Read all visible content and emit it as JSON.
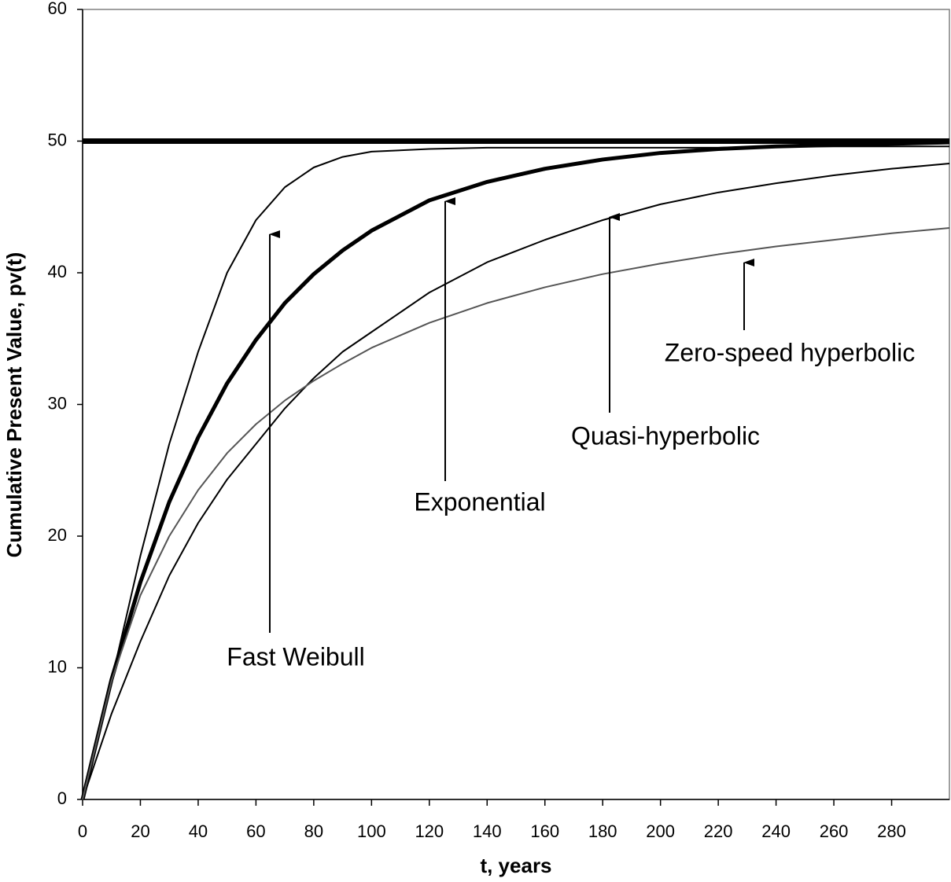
{
  "chart_data": {
    "type": "line",
    "x": [
      0,
      10,
      20,
      30,
      40,
      50,
      60,
      70,
      80,
      90,
      100,
      120,
      140,
      160,
      180,
      200,
      220,
      240,
      260,
      280,
      300
    ],
    "series": [
      {
        "color": "#000000",
        "values": [
          50,
          50,
          50,
          50,
          50,
          50,
          50,
          50,
          50,
          50,
          50,
          50,
          50,
          50,
          50,
          50,
          50,
          50,
          50,
          50,
          50
        ]
      },
      {
        "name": "Fast Weibull",
        "color": "#000000",
        "values": [
          0,
          9,
          18.5,
          27,
          34,
          40,
          44,
          46.5,
          48,
          48.8,
          49.2,
          49.4,
          49.5,
          49.5,
          49.5,
          49.5,
          49.5,
          49.6,
          49.6,
          49.6,
          49.6
        ]
      },
      {
        "name": "Exponential",
        "color": "#000000",
        "values": [
          0,
          9.1,
          16.5,
          22.6,
          27.5,
          31.6,
          34.9,
          37.7,
          39.9,
          41.7,
          43.2,
          45.5,
          46.9,
          47.9,
          48.6,
          49.1,
          49.4,
          49.6,
          49.7,
          49.8,
          49.9
        ]
      },
      {
        "name": "Quasi-hyperbolic",
        "color": "#000000",
        "values": [
          0,
          6.5,
          12,
          17,
          21,
          24.3,
          27,
          29.7,
          32,
          34,
          35.5,
          38.5,
          40.8,
          42.5,
          44,
          45.2,
          46.1,
          46.8,
          47.4,
          47.9,
          48.3
        ]
      },
      {
        "name": "Zero-speed hyperbolic",
        "color": "#555555",
        "values": [
          0,
          9,
          15.5,
          20,
          23.5,
          26.3,
          28.5,
          30.3,
          31.8,
          33.1,
          34.3,
          36.2,
          37.7,
          38.9,
          39.9,
          40.7,
          41.4,
          42,
          42.5,
          43,
          43.4
        ]
      }
    ],
    "x_label": "t, years",
    "y_label": "Cumulative Present Value, pv(t)",
    "xlim": [
      0,
      300
    ],
    "xticks": [
      0,
      20,
      40,
      60,
      80,
      100,
      120,
      140,
      160,
      180,
      200,
      220,
      240,
      260,
      280
    ],
    "ylim": [
      0,
      60
    ],
    "yticks": [
      0,
      10,
      20,
      30,
      40,
      50,
      60
    ],
    "grid": false
  }
}
